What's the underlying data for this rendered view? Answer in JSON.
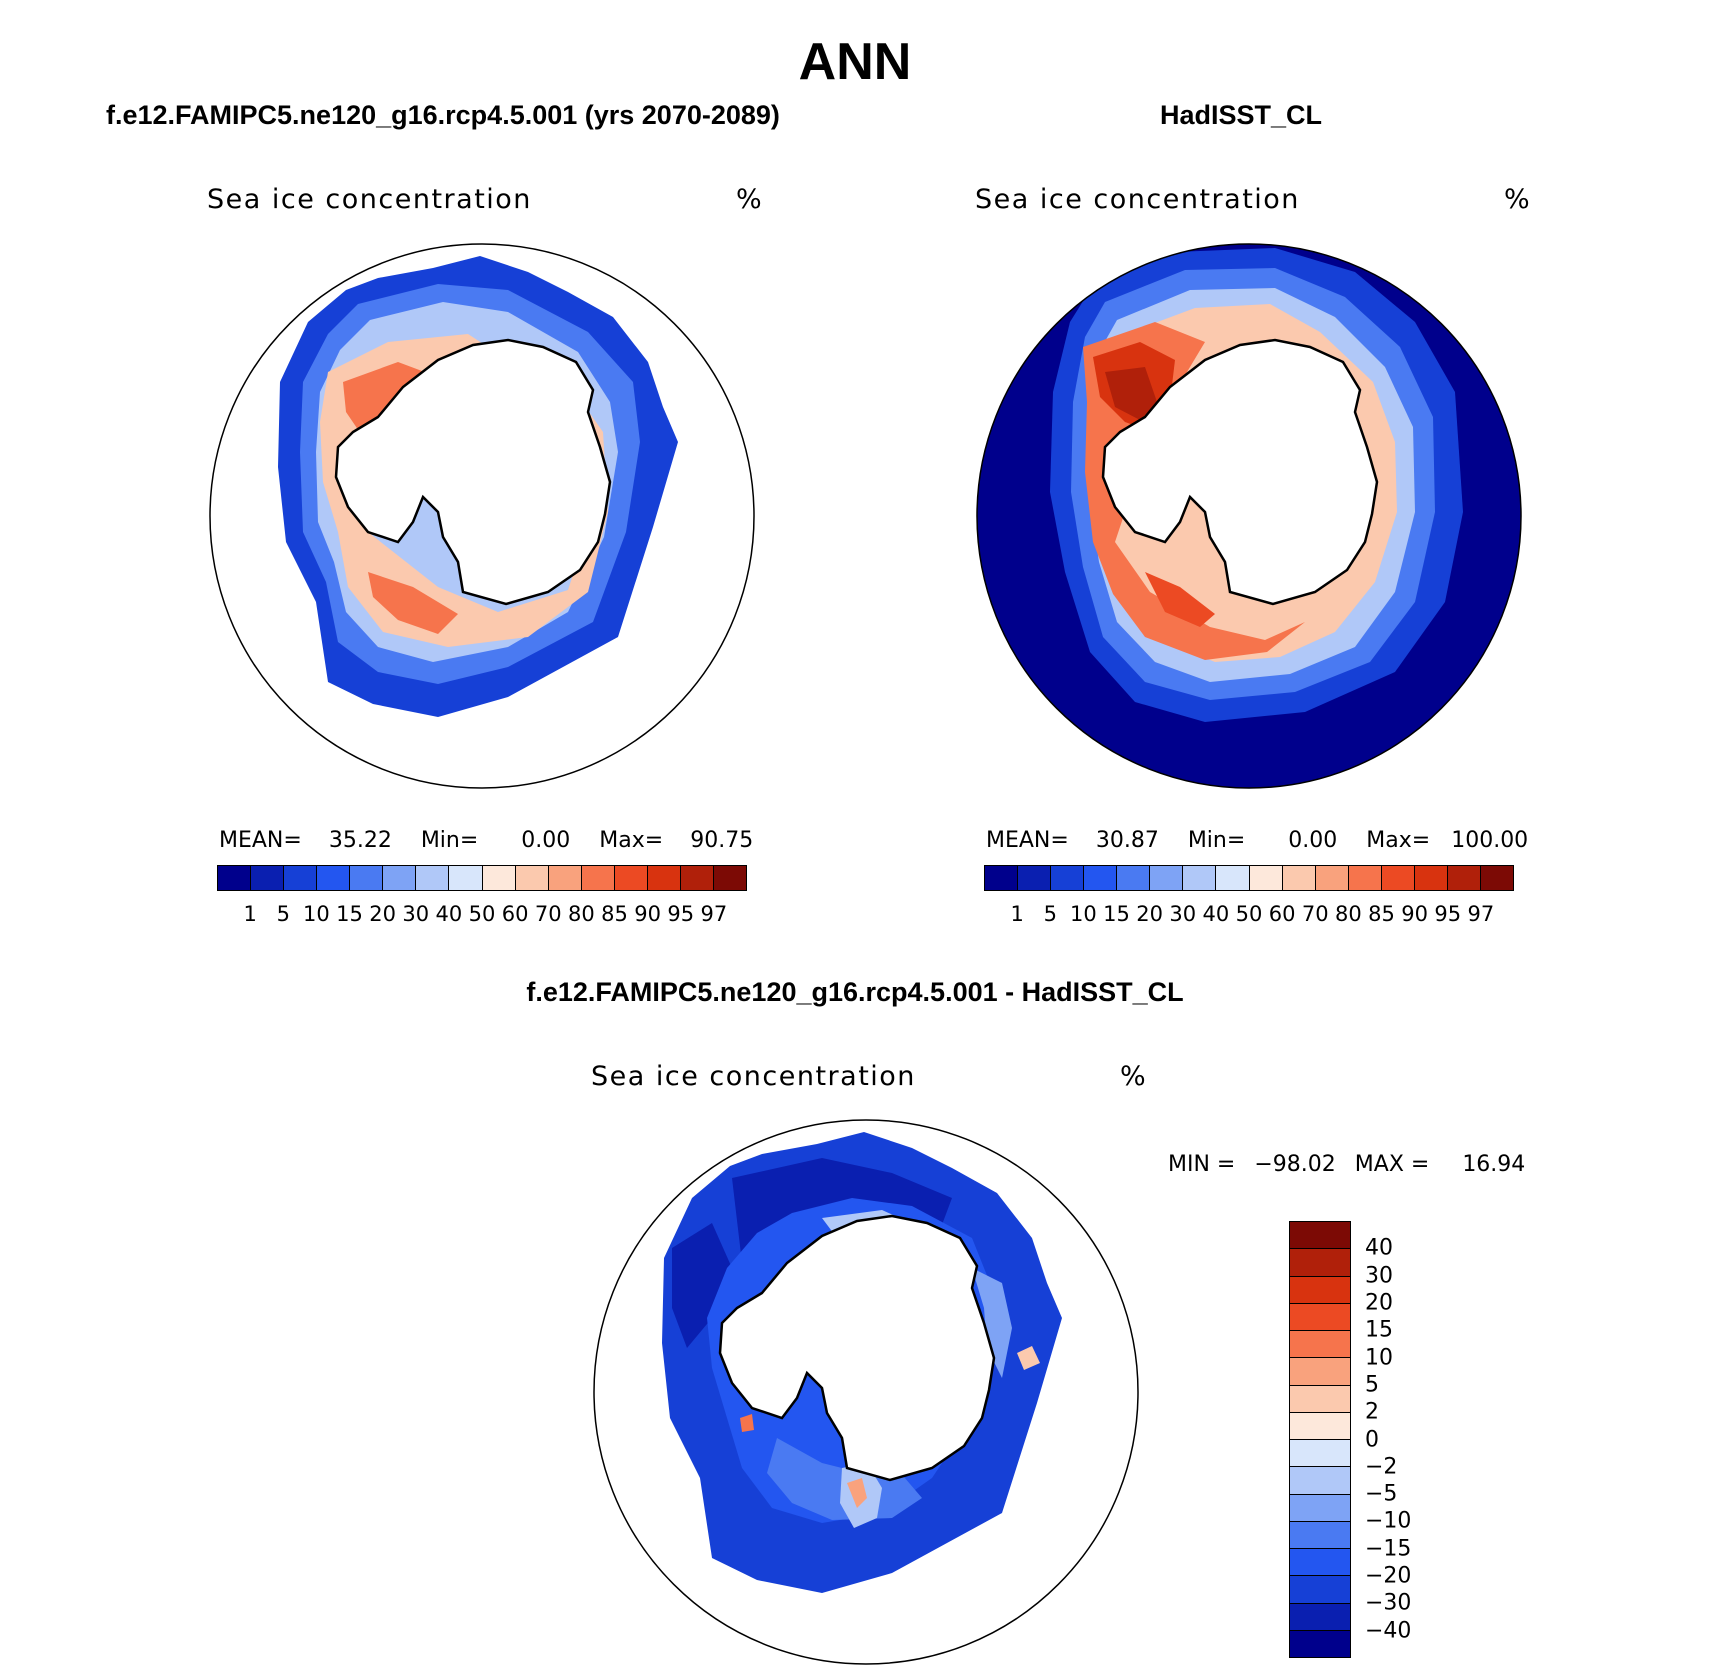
{
  "title": "ANN",
  "panels": [
    {
      "case_title": "f.e12.FAMIPC5.ne120_g16.rcp4.5.001 (yrs 2070-2089)",
      "variable": "Sea ice concentration",
      "units": "%",
      "stats": {
        "mean_label": "MEAN=",
        "mean": "35.22",
        "min_label": "Min=",
        "min": "0.00",
        "max_label": "Max=",
        "max": "90.75"
      }
    },
    {
      "case_title": "HadISST_CL",
      "variable": "Sea ice concentration",
      "units": "%",
      "stats": {
        "mean_label": "MEAN=",
        "mean": "30.87",
        "min_label": "Min=",
        "min": "0.00",
        "max_label": "Max=",
        "max": "100.00"
      }
    },
    {
      "case_title": "f.e12.FAMIPC5.ne120_g16.rcp4.5.001 - HadISST_CL",
      "variable": "Sea ice concentration",
      "units": "%",
      "stats": {
        "min_label": "MIN =",
        "min": "−98.02",
        "max_label": "MAX =",
        "max": "16.94"
      }
    }
  ],
  "colorbar_abs": {
    "ticks": [
      "1",
      "5",
      "10",
      "15",
      "20",
      "30",
      "40",
      "50",
      "60",
      "70",
      "80",
      "85",
      "90",
      "95",
      "97"
    ],
    "colors": [
      "#00008c",
      "#0a1fb0",
      "#1640d6",
      "#2356f0",
      "#4a7af2",
      "#7ea3f5",
      "#b0c8f8",
      "#d8e6fb",
      "#fde8db",
      "#fbc9ae",
      "#f9a27d",
      "#f6744c",
      "#ec4a23",
      "#d8330f",
      "#b0200a",
      "#7c0a05"
    ]
  },
  "colorbar_diff": {
    "ticks": [
      "40",
      "30",
      "20",
      "15",
      "10",
      "5",
      "2",
      "0",
      "−2",
      "−5",
      "−10",
      "−15",
      "−20",
      "−30",
      "−40"
    ],
    "colors": [
      "#7c0a05",
      "#b0200a",
      "#d8330f",
      "#ec4a23",
      "#f6744c",
      "#f9a27d",
      "#fbc9ae",
      "#fde8db",
      "#d8e6fb",
      "#b0c8f8",
      "#7ea3f5",
      "#4a7af2",
      "#2356f0",
      "#1640d6",
      "#0a1fb0",
      "#00008c"
    ]
  }
}
